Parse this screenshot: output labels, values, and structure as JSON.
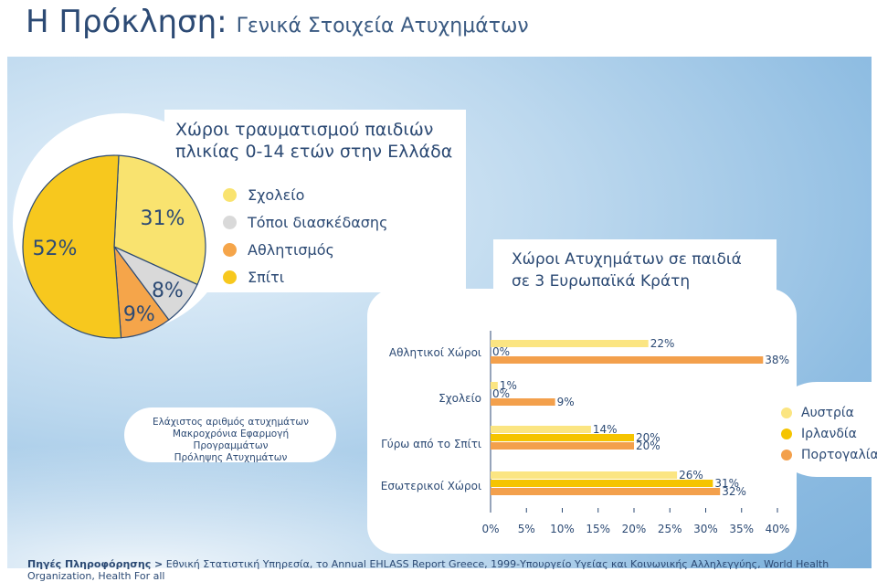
{
  "header": {
    "title": "Η Πρόκληση:",
    "subtitle": "Γενικά Στοιχεία Ατυχημάτων"
  },
  "chart_data": [
    {
      "type": "pie",
      "title": "Χώροι τραυματισμού παιδιών πλικίας 0-14 ετών στην Ελλάδα",
      "title_lines": [
        "Χώροι τραυματισμού παιδιών",
        "πλικίας 0-14 ετών στην Ελλάδα"
      ],
      "slices": [
        {
          "label": "Σχολείο",
          "value": 31,
          "label_text": "31%",
          "color": "#f9e36f"
        },
        {
          "label": "Τόποι διασκέδασης",
          "value": 8,
          "label_text": "8%",
          "color": "#d9d9d9"
        },
        {
          "label": "Αθλητισμός",
          "value": 9,
          "label_text": "9%",
          "color": "#f5a54a"
        },
        {
          "label": "Σπίτι",
          "value": 52,
          "label_text": "52%",
          "color": "#f7c81e"
        }
      ],
      "legend": [
        "Σχολείο",
        "Τόποι διασκέδασης",
        "Αθλητισμός",
        "Σπίτι"
      ]
    },
    {
      "type": "bar",
      "orientation": "horizontal",
      "title": "Χώροι Ατυχημάτων σε παιδιά σε 3 Ευρωπαϊκά Κράτη",
      "title_lines": [
        "Χώροι Ατυχημάτων σε παιδιά",
        "σε 3 Ευρωπαϊκά Κράτη"
      ],
      "categories": [
        "Αθλητικοί Χώροι",
        "Σχολείο",
        "Γύρω από το Σπίτι",
        "Εσωτερικοί Χώροι"
      ],
      "series": [
        {
          "name": "Αυστρία",
          "color": "#fbe582",
          "values": [
            22,
            1,
            14,
            26
          ],
          "labels": [
            "22%",
            "1%",
            "14%",
            "26%"
          ]
        },
        {
          "name": "Ιρλανδία",
          "color": "#f5c400",
          "values": [
            0,
            0,
            20,
            31
          ],
          "labels": [
            "0%",
            "0%",
            "20%",
            "31%"
          ]
        },
        {
          "name": "Πορτογαλία",
          "color": "#f3a04c",
          "values": [
            38,
            9,
            20,
            32
          ],
          "labels": [
            "38%",
            "9%",
            "20%",
            "32%"
          ]
        }
      ],
      "xlim": [
        0,
        40
      ],
      "xticks": [
        "0%",
        "5%",
        "10%",
        "15%",
        "20%",
        "25%",
        "30%",
        "35%",
        "40%"
      ],
      "legend_position": "right"
    }
  ],
  "note": {
    "lines": [
      "Ελάχιστος αριθμός ατυχημάτων",
      "Μακροχρόνια Εφαρμογή Προγραμμάτων",
      "Πρόληψης Ατυχημάτων"
    ]
  },
  "source": {
    "label": "Πηγές Πληροφόρησης >",
    "text": "Εθνική Στατιστική Υπηρεσία, το Annual EHLASS Report Greece, 1999-Υπουργείο Υγείας και Κοινωνικής Αλληλεγγύης, World Health Organization, Health For all"
  }
}
